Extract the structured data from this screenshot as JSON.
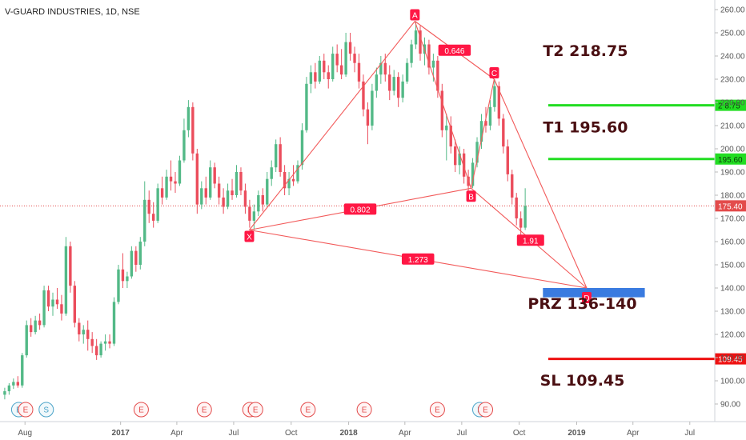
{
  "header": {
    "symbol_title": "V-GUARD INDUSTRIES, 1D, NSE"
  },
  "chart_data": {
    "type": "candlestick",
    "y_axis": {
      "ticks": [
        90,
        100,
        110,
        120,
        130,
        140,
        150,
        160,
        170,
        180,
        190,
        200,
        210,
        220,
        230,
        240,
        250,
        260
      ],
      "range": [
        85,
        263
      ]
    },
    "x_axis": {
      "labels": [
        "Aug",
        "2017",
        "Apr",
        "Jul",
        "Oct",
        "2018",
        "Apr",
        "Jul",
        "Oct",
        "2019",
        "Apr",
        "Jul"
      ],
      "range": [
        "2016-06-22",
        "2019-08-10"
      ]
    },
    "last_price": {
      "value": 175.4,
      "label": "175.40"
    },
    "ohlc": [
      {
        "d": "2016-06-27",
        "o": 94.0,
        "h": 97.0,
        "l": 92.0,
        "c": 95.5
      },
      {
        "d": "2016-07-04",
        "o": 95.5,
        "h": 99.0,
        "l": 94.0,
        "c": 98.0
      },
      {
        "d": "2016-07-11",
        "o": 98.0,
        "h": 101.0,
        "l": 96.5,
        "c": 99.5
      },
      {
        "d": "2016-07-18",
        "o": 99.5,
        "h": 102.0,
        "l": 97.0,
        "c": 98.0
      },
      {
        "d": "2016-07-25",
        "o": 98.0,
        "h": 112.0,
        "l": 97.0,
        "c": 111.0
      },
      {
        "d": "2016-08-01",
        "o": 111.0,
        "h": 126.0,
        "l": 110.0,
        "c": 124.0
      },
      {
        "d": "2016-08-08",
        "o": 124.0,
        "h": 127.0,
        "l": 119.0,
        "c": 121.0
      },
      {
        "d": "2016-08-15",
        "o": 121.0,
        "h": 128.0,
        "l": 120.0,
        "c": 126.0
      },
      {
        "d": "2016-08-22",
        "o": 126.0,
        "h": 129.0,
        "l": 122.0,
        "c": 124.0
      },
      {
        "d": "2016-08-29",
        "o": 124.0,
        "h": 141.0,
        "l": 123.0,
        "c": 139.0
      },
      {
        "d": "2016-09-05",
        "o": 139.0,
        "h": 141.0,
        "l": 130.0,
        "c": 132.0
      },
      {
        "d": "2016-09-12",
        "o": 132.0,
        "h": 138.0,
        "l": 128.0,
        "c": 135.0
      },
      {
        "d": "2016-09-19",
        "o": 135.0,
        "h": 140.0,
        "l": 131.0,
        "c": 133.0
      },
      {
        "d": "2016-09-26",
        "o": 133.0,
        "h": 137.0,
        "l": 126.0,
        "c": 129.0
      },
      {
        "d": "2016-10-03",
        "o": 129.0,
        "h": 162.0,
        "l": 128.0,
        "c": 158.0
      },
      {
        "d": "2016-10-10",
        "o": 158.0,
        "h": 160.0,
        "l": 138.0,
        "c": 141.0
      },
      {
        "d": "2016-10-17",
        "o": 141.0,
        "h": 143.0,
        "l": 123.0,
        "c": 125.0
      },
      {
        "d": "2016-10-24",
        "o": 125.0,
        "h": 127.0,
        "l": 117.0,
        "c": 120.0
      },
      {
        "d": "2016-10-31",
        "o": 120.0,
        "h": 124.0,
        "l": 116.0,
        "c": 122.0
      },
      {
        "d": "2016-11-07",
        "o": 122.0,
        "h": 126.0,
        "l": 113.0,
        "c": 118.0
      },
      {
        "d": "2016-11-14",
        "o": 118.0,
        "h": 121.0,
        "l": 112.0,
        "c": 115.0
      },
      {
        "d": "2016-11-21",
        "o": 115.0,
        "h": 118.0,
        "l": 109.0,
        "c": 111.0
      },
      {
        "d": "2016-11-28",
        "o": 111.0,
        "h": 117.0,
        "l": 110.0,
        "c": 116.0
      },
      {
        "d": "2016-12-05",
        "o": 116.0,
        "h": 120.0,
        "l": 113.0,
        "c": 117.0
      },
      {
        "d": "2016-12-12",
        "o": 117.0,
        "h": 120.0,
        "l": 114.0,
        "c": 116.0
      },
      {
        "d": "2016-12-19",
        "o": 116.0,
        "h": 136.0,
        "l": 115.0,
        "c": 134.0
      },
      {
        "d": "2016-12-26",
        "o": 134.0,
        "h": 150.0,
        "l": 133.0,
        "c": 148.0
      },
      {
        "d": "2017-01-02",
        "o": 148.0,
        "h": 155.0,
        "l": 140.0,
        "c": 143.0
      },
      {
        "d": "2017-01-09",
        "o": 143.0,
        "h": 147.0,
        "l": 140.0,
        "c": 145.0
      },
      {
        "d": "2017-01-16",
        "o": 145.0,
        "h": 158.0,
        "l": 144.0,
        "c": 156.0
      },
      {
        "d": "2017-01-23",
        "o": 156.0,
        "h": 158.0,
        "l": 147.0,
        "c": 150.0
      },
      {
        "d": "2017-01-30",
        "o": 150.0,
        "h": 162.0,
        "l": 148.0,
        "c": 160.0
      },
      {
        "d": "2017-02-06",
        "o": 160.0,
        "h": 186.0,
        "l": 158.0,
        "c": 178.0
      },
      {
        "d": "2017-02-13",
        "o": 178.0,
        "h": 182.0,
        "l": 168.0,
        "c": 172.0
      },
      {
        "d": "2017-02-20",
        "o": 172.0,
        "h": 177.0,
        "l": 166.0,
        "c": 169.0
      },
      {
        "d": "2017-02-27",
        "o": 169.0,
        "h": 185.0,
        "l": 168.0,
        "c": 183.0
      },
      {
        "d": "2017-03-06",
        "o": 183.0,
        "h": 188.0,
        "l": 176.0,
        "c": 179.0
      },
      {
        "d": "2017-03-13",
        "o": 179.0,
        "h": 191.0,
        "l": 178.0,
        "c": 188.0
      },
      {
        "d": "2017-03-20",
        "o": 188.0,
        "h": 195.0,
        "l": 182.0,
        "c": 186.0
      },
      {
        "d": "2017-03-27",
        "o": 186.0,
        "h": 190.0,
        "l": 181.0,
        "c": 185.0
      },
      {
        "d": "2017-04-03",
        "o": 185.0,
        "h": 197.0,
        "l": 184.0,
        "c": 195.0
      },
      {
        "d": "2017-04-10",
        "o": 195.0,
        "h": 213.0,
        "l": 194.0,
        "c": 208.0
      },
      {
        "d": "2017-04-17",
        "o": 208.0,
        "h": 221.0,
        "l": 205.0,
        "c": 218.0
      },
      {
        "d": "2017-04-24",
        "o": 218.0,
        "h": 220.0,
        "l": 195.0,
        "c": 198.0
      },
      {
        "d": "2017-05-01",
        "o": 198.0,
        "h": 200.0,
        "l": 172.0,
        "c": 176.0
      },
      {
        "d": "2017-05-08",
        "o": 176.0,
        "h": 186.0,
        "l": 174.0,
        "c": 183.0
      },
      {
        "d": "2017-05-15",
        "o": 183.0,
        "h": 188.0,
        "l": 176.0,
        "c": 179.0
      },
      {
        "d": "2017-05-22",
        "o": 179.0,
        "h": 195.0,
        "l": 178.0,
        "c": 192.0
      },
      {
        "d": "2017-05-29",
        "o": 192.0,
        "h": 194.0,
        "l": 183.0,
        "c": 185.0
      },
      {
        "d": "2017-06-05",
        "o": 185.0,
        "h": 188.0,
        "l": 176.0,
        "c": 179.0
      },
      {
        "d": "2017-06-12",
        "o": 179.0,
        "h": 183.0,
        "l": 172.0,
        "c": 175.0
      },
      {
        "d": "2017-06-19",
        "o": 175.0,
        "h": 185.0,
        "l": 174.0,
        "c": 182.0
      },
      {
        "d": "2017-06-26",
        "o": 182.0,
        "h": 187.0,
        "l": 178.0,
        "c": 180.0
      },
      {
        "d": "2017-07-03",
        "o": 180.0,
        "h": 193.0,
        "l": 179.0,
        "c": 190.0
      },
      {
        "d": "2017-07-10",
        "o": 190.0,
        "h": 192.0,
        "l": 180.0,
        "c": 182.0
      },
      {
        "d": "2017-07-17",
        "o": 182.0,
        "h": 185.0,
        "l": 172.0,
        "c": 175.0
      },
      {
        "d": "2017-07-24",
        "o": 175.0,
        "h": 178.0,
        "l": 166.0,
        "c": 169.0
      },
      {
        "d": "2017-07-31",
        "o": 169.0,
        "h": 176.0,
        "l": 165.0,
        "c": 173.0
      },
      {
        "d": "2017-08-07",
        "o": 173.0,
        "h": 182.0,
        "l": 171.0,
        "c": 180.0
      },
      {
        "d": "2017-08-14",
        "o": 180.0,
        "h": 183.0,
        "l": 173.0,
        "c": 176.0
      },
      {
        "d": "2017-08-21",
        "o": 176.0,
        "h": 190.0,
        "l": 175.0,
        "c": 187.0
      },
      {
        "d": "2017-08-28",
        "o": 187.0,
        "h": 195.0,
        "l": 184.0,
        "c": 192.0
      },
      {
        "d": "2017-09-04",
        "o": 192.0,
        "h": 204.0,
        "l": 190.0,
        "c": 202.0
      },
      {
        "d": "2017-09-11",
        "o": 202.0,
        "h": 205.0,
        "l": 188.0,
        "c": 190.0
      },
      {
        "d": "2017-09-18",
        "o": 190.0,
        "h": 193.0,
        "l": 180.0,
        "c": 183.0
      },
      {
        "d": "2017-09-25",
        "o": 183.0,
        "h": 190.0,
        "l": 180.0,
        "c": 187.0
      },
      {
        "d": "2017-10-02",
        "o": 187.0,
        "h": 193.0,
        "l": 184.0,
        "c": 186.0
      },
      {
        "d": "2017-10-09",
        "o": 186.0,
        "h": 195.0,
        "l": 185.0,
        "c": 193.0
      },
      {
        "d": "2017-10-16",
        "o": 193.0,
        "h": 211.0,
        "l": 191.0,
        "c": 208.0
      },
      {
        "d": "2017-10-23",
        "o": 208.0,
        "h": 231.0,
        "l": 207.0,
        "c": 228.0
      },
      {
        "d": "2017-10-30",
        "o": 228.0,
        "h": 236.0,
        "l": 224.0,
        "c": 233.0
      },
      {
        "d": "2017-11-06",
        "o": 233.0,
        "h": 237.0,
        "l": 226.0,
        "c": 229.0
      },
      {
        "d": "2017-11-13",
        "o": 229.0,
        "h": 240.0,
        "l": 228.0,
        "c": 238.0
      },
      {
        "d": "2017-11-20",
        "o": 238.0,
        "h": 241.0,
        "l": 230.0,
        "c": 233.0
      },
      {
        "d": "2017-11-27",
        "o": 233.0,
        "h": 236.0,
        "l": 226.0,
        "c": 230.0
      },
      {
        "d": "2017-12-04",
        "o": 230.0,
        "h": 244.0,
        "l": 229.0,
        "c": 241.0
      },
      {
        "d": "2017-12-11",
        "o": 241.0,
        "h": 245.0,
        "l": 233.0,
        "c": 236.0
      },
      {
        "d": "2017-12-18",
        "o": 236.0,
        "h": 243.0,
        "l": 230.0,
        "c": 232.0
      },
      {
        "d": "2017-12-25",
        "o": 232.0,
        "h": 250.0,
        "l": 231.0,
        "c": 246.0
      },
      {
        "d": "2018-01-01",
        "o": 246.0,
        "h": 250.0,
        "l": 238.0,
        "c": 241.0
      },
      {
        "d": "2018-01-08",
        "o": 241.0,
        "h": 244.0,
        "l": 233.0,
        "c": 237.0
      },
      {
        "d": "2018-01-15",
        "o": 237.0,
        "h": 241.0,
        "l": 226.0,
        "c": 229.0
      },
      {
        "d": "2018-01-22",
        "o": 229.0,
        "h": 232.0,
        "l": 214.0,
        "c": 217.0
      },
      {
        "d": "2018-01-29",
        "o": 217.0,
        "h": 220.0,
        "l": 202.0,
        "c": 210.0
      },
      {
        "d": "2018-02-05",
        "o": 210.0,
        "h": 228.0,
        "l": 208.0,
        "c": 225.0
      },
      {
        "d": "2018-02-12",
        "o": 225.0,
        "h": 235.0,
        "l": 222.0,
        "c": 232.0
      },
      {
        "d": "2018-02-19",
        "o": 232.0,
        "h": 240.0,
        "l": 228.0,
        "c": 237.0
      },
      {
        "d": "2018-02-26",
        "o": 237.0,
        "h": 241.0,
        "l": 229.0,
        "c": 232.0
      },
      {
        "d": "2018-03-05",
        "o": 232.0,
        "h": 236.0,
        "l": 221.0,
        "c": 225.0
      },
      {
        "d": "2018-03-12",
        "o": 225.0,
        "h": 234.0,
        "l": 223.0,
        "c": 231.0
      },
      {
        "d": "2018-03-19",
        "o": 231.0,
        "h": 233.0,
        "l": 218.0,
        "c": 222.0
      },
      {
        "d": "2018-03-26",
        "o": 222.0,
        "h": 232.0,
        "l": 220.0,
        "c": 229.0
      },
      {
        "d": "2018-04-02",
        "o": 229.0,
        "h": 239.0,
        "l": 228.0,
        "c": 237.0
      },
      {
        "d": "2018-04-09",
        "o": 237.0,
        "h": 247.0,
        "l": 235.0,
        "c": 245.0
      },
      {
        "d": "2018-04-16",
        "o": 245.0,
        "h": 255.0,
        "l": 243.0,
        "c": 251.0
      },
      {
        "d": "2018-04-23",
        "o": 251.0,
        "h": 253.0,
        "l": 238.0,
        "c": 241.0
      },
      {
        "d": "2018-04-30",
        "o": 241.0,
        "h": 248.0,
        "l": 236.0,
        "c": 245.0
      },
      {
        "d": "2018-05-07",
        "o": 245.0,
        "h": 247.0,
        "l": 232.0,
        "c": 235.0
      },
      {
        "d": "2018-05-14",
        "o": 235.0,
        "h": 241.0,
        "l": 229.0,
        "c": 238.0
      },
      {
        "d": "2018-05-21",
        "o": 238.0,
        "h": 240.0,
        "l": 222.0,
        "c": 225.0
      },
      {
        "d": "2018-05-28",
        "o": 225.0,
        "h": 228.0,
        "l": 205.0,
        "c": 208.0
      },
      {
        "d": "2018-06-04",
        "o": 208.0,
        "h": 215.0,
        "l": 195.0,
        "c": 210.0
      },
      {
        "d": "2018-06-11",
        "o": 210.0,
        "h": 214.0,
        "l": 198.0,
        "c": 201.0
      },
      {
        "d": "2018-06-18",
        "o": 201.0,
        "h": 204.0,
        "l": 190.0,
        "c": 193.0
      },
      {
        "d": "2018-06-25",
        "o": 193.0,
        "h": 201.0,
        "l": 189.0,
        "c": 198.0
      },
      {
        "d": "2018-07-02",
        "o": 198.0,
        "h": 200.0,
        "l": 185.0,
        "c": 188.0
      },
      {
        "d": "2018-07-09",
        "o": 188.0,
        "h": 191.0,
        "l": 180.0,
        "c": 184.0
      },
      {
        "d": "2018-07-16",
        "o": 184.0,
        "h": 196.0,
        "l": 183.0,
        "c": 194.0
      },
      {
        "d": "2018-07-23",
        "o": 194.0,
        "h": 205.0,
        "l": 192.0,
        "c": 203.0
      },
      {
        "d": "2018-07-30",
        "o": 203.0,
        "h": 215.0,
        "l": 200.0,
        "c": 212.0
      },
      {
        "d": "2018-08-06",
        "o": 212.0,
        "h": 218.0,
        "l": 207.0,
        "c": 210.0
      },
      {
        "d": "2018-08-13",
        "o": 210.0,
        "h": 221.0,
        "l": 208.0,
        "c": 218.0
      },
      {
        "d": "2018-08-20",
        "o": 218.0,
        "h": 230.0,
        "l": 216.0,
        "c": 227.0
      },
      {
        "d": "2018-08-27",
        "o": 227.0,
        "h": 229.0,
        "l": 210.0,
        "c": 213.0
      },
      {
        "d": "2018-09-03",
        "o": 213.0,
        "h": 215.0,
        "l": 198.0,
        "c": 201.0
      },
      {
        "d": "2018-09-10",
        "o": 201.0,
        "h": 204.0,
        "l": 186.0,
        "c": 189.0
      },
      {
        "d": "2018-09-17",
        "o": 189.0,
        "h": 191.0,
        "l": 176.0,
        "c": 179.0
      },
      {
        "d": "2018-09-24",
        "o": 179.0,
        "h": 181.0,
        "l": 167.0,
        "c": 170.0
      },
      {
        "d": "2018-10-01",
        "o": 170.0,
        "h": 173.0,
        "l": 162.0,
        "c": 166.0
      },
      {
        "d": "2018-10-08",
        "o": 166.0,
        "h": 183.0,
        "l": 165.0,
        "c": 175.4
      }
    ],
    "harmonic_pattern": {
      "points": [
        {
          "label": "X",
          "date": "2017-07-26",
          "price": 165
        },
        {
          "label": "A",
          "date": "2018-04-17",
          "price": 255
        },
        {
          "label": "B",
          "date": "2018-07-16",
          "price": 183
        },
        {
          "label": "C",
          "date": "2018-08-22",
          "price": 230
        },
        {
          "label": "D",
          "date": "2019-01-17",
          "price": 140
        }
      ],
      "ratios": [
        {
          "label": "0.646",
          "from": "A",
          "to": "C"
        },
        {
          "label": "0.802",
          "from": "X",
          "to": "B"
        },
        {
          "label": "1.91",
          "from": "B",
          "to": "D"
        },
        {
          "label": "1.273",
          "from": "X",
          "to": "D"
        }
      ],
      "extra_point": {
        "label": "",
        "date": "2018-10-05",
        "price": 163
      }
    },
    "levels": [
      {
        "name": "T2",
        "value": 218.75,
        "price_label": "2 8.75",
        "color": "#22dd22"
      },
      {
        "name": "T1",
        "value": 195.6,
        "price_label": "195.60",
        "color": "#22dd22"
      },
      {
        "name": "SL",
        "value": 109.45,
        "price_label": "109.45",
        "color": "#ee1111"
      }
    ],
    "prz_zone": {
      "low": 136,
      "high": 140,
      "from": "2018-12-01",
      "to": "2019-04-20",
      "color": "#3a7be0"
    },
    "annotations": [
      {
        "text": "T2  218.75",
        "date": "2019-01-15",
        "price": 240
      },
      {
        "text": "T1 195.60",
        "date": "2019-01-15",
        "price": 207
      },
      {
        "text": "PRZ 136-140",
        "date": "2019-01-10",
        "price": 131
      },
      {
        "text": "SL 109.45",
        "date": "2019-01-10",
        "price": 98
      }
    ],
    "events": [
      {
        "letter": "E",
        "date": "2016-07-22",
        "color": "#4aa3c8",
        "fill": "#f0f8fb"
      },
      {
        "letter": "E",
        "date": "2016-08-02",
        "color": "#e34b4b",
        "fill": "#fff4f4"
      },
      {
        "letter": "S",
        "date": "2016-09-04",
        "color": "#4aa3c8",
        "fill": "#f0f8fb"
      },
      {
        "letter": "E",
        "date": "2017-02-03",
        "color": "#e34b4b",
        "fill": "#fff4f4"
      },
      {
        "letter": "E",
        "date": "2017-05-15",
        "color": "#e34b4b",
        "fill": "#fff4f4"
      },
      {
        "letter": "E",
        "date": "2017-07-27",
        "color": "#e34b4b",
        "fill": "#fff4f4"
      },
      {
        "letter": "E",
        "date": "2017-08-05",
        "color": "#e34b4b",
        "fill": "#fff4f4"
      },
      {
        "letter": "E",
        "date": "2017-10-28",
        "color": "#e34b4b",
        "fill": "#fff4f4"
      },
      {
        "letter": "E",
        "date": "2018-01-26",
        "color": "#e34b4b",
        "fill": "#fff4f4"
      },
      {
        "letter": "E",
        "date": "2018-05-23",
        "color": "#e34b4b",
        "fill": "#fff4f4"
      },
      {
        "letter": "E",
        "date": "2018-07-30",
        "color": "#4aa3c8",
        "fill": "#f0f8fb"
      },
      {
        "letter": "E",
        "date": "2018-08-08",
        "color": "#e34b4b",
        "fill": "#fff4f4"
      }
    ],
    "colors": {
      "up": "#53b987",
      "down": "#eb4d5c",
      "pattern": "#f25a5a",
      "label_bg": "#ff1744"
    },
    "grid": false,
    "legend": "none"
  }
}
